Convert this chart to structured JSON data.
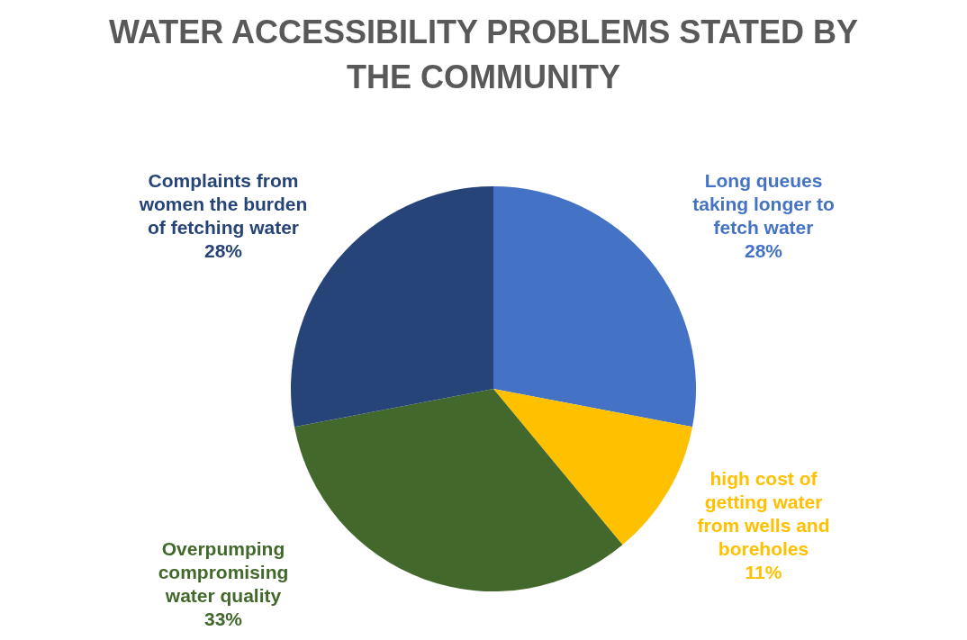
{
  "chart_data": {
    "type": "pie",
    "title": "WATER ACCESSIBILITY PROBLEMS STATED BY THE COMMUNITY",
    "categories": [
      "Long queues taking longer to fetch water",
      "high cost of getting water from wells and boreholes",
      "Overpumping compromising water quality",
      "Complaints from women the burden of fetching water"
    ],
    "values": [
      28,
      11,
      33,
      28
    ],
    "value_labels": [
      "28%",
      "11%",
      "33%",
      "28%"
    ],
    "colors": [
      "#4472c4",
      "#ffc000",
      "#43682b",
      "#264478"
    ]
  }
}
